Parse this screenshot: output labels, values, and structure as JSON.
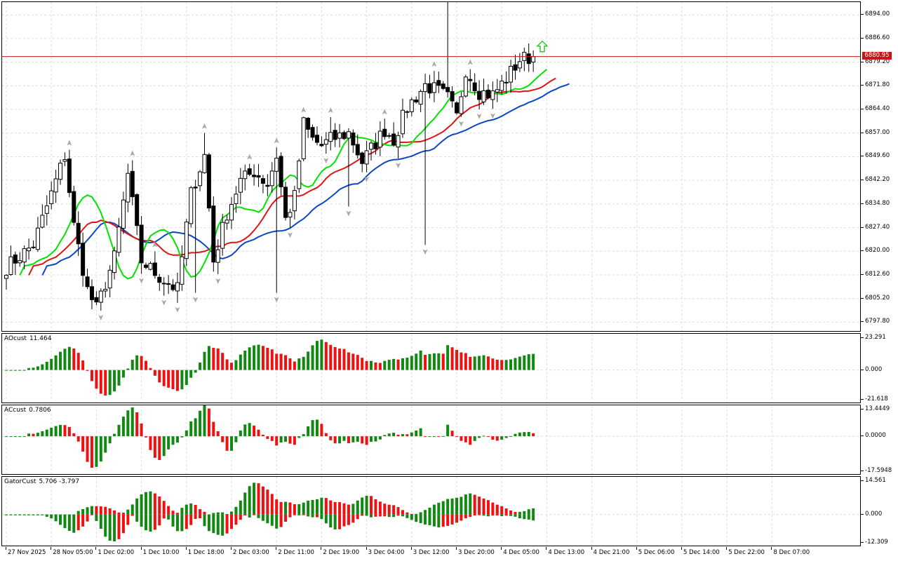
{
  "colors": {
    "bull_fill": "#ffffff",
    "bear_fill": "#000000",
    "candle_stroke": "#000000",
    "ma_fast": "#00e400",
    "ma_mid": "#e11414",
    "ma_slow": "#0a47c8",
    "hist_up": "#118811",
    "hist_down": "#ee1111",
    "price_line": "#c81414",
    "grid": "#dcdcdc",
    "fractal": "#a8a8a8",
    "signal_arrow": "#2ecc2e"
  },
  "main_chart": {
    "price_axis": [
      "6894.00",
      "6886.60",
      "6879.20",
      "6871.80",
      "6864.40",
      "6857.00",
      "6849.60",
      "6842.20",
      "6834.80",
      "6827.40",
      "6820.00",
      "6812.60",
      "6805.20",
      "6797.80"
    ],
    "current_price": "6880.95",
    "signal_arrow_icon": "up-arrow-icon"
  },
  "indicators": [
    {
      "label": "AOcust",
      "value": "11.464",
      "axis": [
        "23.291",
        "0.000",
        "-21.618"
      ]
    },
    {
      "label": "ACcust",
      "value": "0.7806",
      "axis": [
        "13.4449",
        "0.0000",
        "-17.5948"
      ]
    },
    {
      "label": "GatorCust",
      "value": "5.706 -3.797",
      "axis": [
        "14.561",
        "0.000",
        "-12.309"
      ]
    }
  ],
  "time_axis": [
    "27 Nov 2025",
    "28 Nov 05:00",
    "1 Dec 02:00",
    "1 Dec 10:00",
    "1 Dec 18:00",
    "2 Dec 03:00",
    "2 Dec 11:00",
    "2 Dec 19:00",
    "3 Dec 04:00",
    "3 Dec 12:00",
    "3 Dec 20:00",
    "4 Dec 05:00",
    "4 Dec 13:00",
    "4 Dec 21:00",
    "5 Dec 06:00",
    "5 Dec 14:00",
    "5 Dec 22:00",
    "8 Dec 07:00"
  ],
  "chart_data": {
    "type": "candlestick",
    "candles_per_time_label": 10,
    "price_scale": [
      6794.6,
      6898.0
    ],
    "anchors": [
      [
        0,
        6815
      ],
      [
        6,
        6822
      ],
      [
        10,
        6838
      ],
      [
        13,
        6850
      ],
      [
        15,
        6828
      ],
      [
        18,
        6808
      ],
      [
        20,
        6802
      ],
      [
        24,
        6818
      ],
      [
        27,
        6844
      ],
      [
        30,
        6817
      ],
      [
        34,
        6812
      ],
      [
        38,
        6808
      ],
      [
        41,
        6838
      ],
      [
        44,
        6850
      ],
      [
        46,
        6817
      ],
      [
        49,
        6832
      ],
      [
        52,
        6842
      ],
      [
        55,
        6845
      ],
      [
        58,
        6841
      ],
      [
        60,
        6850
      ],
      [
        62,
        6830
      ],
      [
        64,
        6837
      ],
      [
        66,
        6860
      ],
      [
        68,
        6855
      ],
      [
        70,
        6853
      ],
      [
        72,
        6855
      ],
      [
        76,
        6857
      ],
      [
        79,
        6848
      ],
      [
        81,
        6852
      ],
      [
        84,
        6858
      ],
      [
        86,
        6855
      ],
      [
        89,
        6865
      ],
      [
        93,
        6872
      ],
      [
        96,
        6870
      ],
      [
        98,
        6868
      ],
      [
        100,
        6862
      ],
      [
        102,
        6877
      ],
      [
        105,
        6870
      ],
      [
        108,
        6869
      ],
      [
        111,
        6874
      ],
      [
        114,
        6880
      ],
      [
        117,
        6881
      ]
    ],
    "indicator_zero_lines": [
      0.0,
      0.0,
      0.0
    ]
  }
}
